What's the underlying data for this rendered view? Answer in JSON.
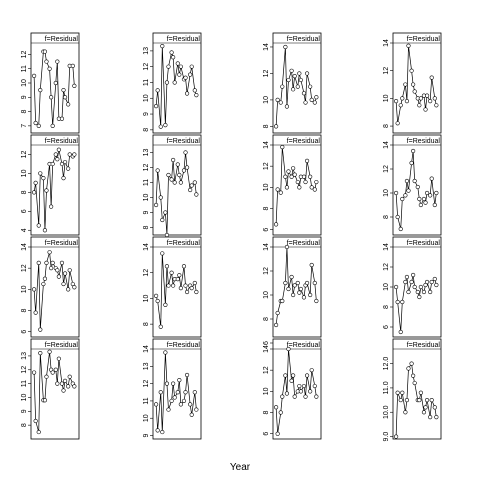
{
  "xlabel": "Year",
  "chart_data": [
    {
      "type": "line",
      "title": "f=Residual",
      "x": [
        1978,
        1979,
        1981,
        1982,
        1984,
        1985,
        1986,
        1988,
        1989,
        1990,
        1992,
        1993,
        1994,
        1996,
        1997,
        1998,
        2000,
        2001,
        2003,
        2004
      ],
      "values": [
        10.5,
        7.2,
        7.0,
        9.5,
        12.2,
        12.2,
        11.5,
        11.0,
        9.0,
        7.0,
        10.0,
        11.5,
        7.5,
        7.5,
        9.5,
        9.0,
        8.5,
        11.2,
        11.2,
        9.8
      ],
      "xlim": [
        1976,
        2007
      ],
      "ylim": [
        6.5,
        12.8
      ],
      "yticks": [
        7,
        8,
        9,
        10,
        11,
        12
      ]
    },
    {
      "type": "line",
      "title": "f=Residual",
      "x": [
        1978,
        1979,
        1981,
        1982,
        1984,
        1985,
        1986,
        1988,
        1989,
        1990,
        1992,
        1993,
        1994,
        1996,
        1997,
        1998,
        2000,
        2001,
        2003,
        2004
      ],
      "values": [
        9.5,
        10.5,
        8.2,
        13.3,
        8.3,
        11.0,
        12.0,
        12.9,
        12.6,
        11.0,
        12.2,
        11.5,
        12.0,
        11.2,
        11.3,
        10.3,
        11.5,
        12.0,
        10.5,
        10.2
      ],
      "xlim": [
        1976,
        2007
      ],
      "ylim": [
        7.8,
        13.5
      ],
      "yticks": [
        8,
        9,
        10,
        11,
        12,
        13
      ]
    },
    {
      "type": "line",
      "title": "f=Residual",
      "x": [
        1978,
        1979,
        1981,
        1982,
        1984,
        1985,
        1986,
        1988,
        1989,
        1990,
        1992,
        1993,
        1994,
        1996,
        1997,
        1998,
        2000,
        2001,
        2003,
        2004
      ],
      "values": [
        8.0,
        10.0,
        9.8,
        11.0,
        14.0,
        9.5,
        11.5,
        12.2,
        10.8,
        11.8,
        11.0,
        12.0,
        11.5,
        10.5,
        9.8,
        12.0,
        11.0,
        10.0,
        9.8,
        10.2
      ],
      "xlim": [
        1976,
        2007
      ],
      "ylim": [
        7.5,
        14.3
      ],
      "yticks": [
        8,
        10,
        12,
        14
      ]
    },
    {
      "type": "line",
      "title": "f=Residual",
      "x": [
        1978,
        1979,
        1981,
        1982,
        1984,
        1985,
        1986,
        1988,
        1989,
        1990,
        1992,
        1993,
        1994,
        1996,
        1997,
        1998,
        2000,
        2001,
        2003,
        2004
      ],
      "values": [
        9.8,
        8.2,
        9.5,
        10.0,
        11.0,
        9.8,
        13.8,
        12.0,
        11.0,
        10.5,
        10.0,
        9.5,
        10.0,
        10.2,
        9.2,
        10.2,
        9.8,
        11.5,
        10.0,
        9.5
      ],
      "xlim": [
        1976,
        2007
      ],
      "ylim": [
        7.5,
        14
      ],
      "yticks": [
        8,
        10,
        12,
        14
      ]
    },
    {
      "type": "line",
      "title": "f=Residual",
      "x": [
        1978,
        1979,
        1981,
        1982,
        1984,
        1985,
        1986,
        1988,
        1989,
        1990,
        1992,
        1993,
        1994,
        1996,
        1997,
        1998,
        2000,
        2001,
        2003,
        2004
      ],
      "values": [
        8.0,
        9.0,
        4.5,
        10.0,
        9.5,
        4.0,
        8.2,
        11.0,
        6.5,
        11.0,
        12.0,
        11.5,
        12.5,
        11.0,
        9.5,
        11.2,
        10.5,
        12.0,
        11.8,
        12.0
      ],
      "xlim": [
        1976,
        2007
      ],
      "ylim": [
        3.5,
        13
      ],
      "yticks": [
        4,
        6,
        8,
        10,
        12
      ]
    },
    {
      "type": "line",
      "title": "f=Residual",
      "x": [
        1978,
        1979,
        1981,
        1982,
        1984,
        1985,
        1986,
        1988,
        1989,
        1990,
        1992,
        1993,
        1994,
        1996,
        1997,
        1998,
        2000,
        2001,
        2003,
        2004
      ],
      "values": [
        9.5,
        11.8,
        10.0,
        8.5,
        9.0,
        7.5,
        11.5,
        11.2,
        12.5,
        11.0,
        12.2,
        11.5,
        11.0,
        11.8,
        13.0,
        12.0,
        10.5,
        10.8,
        11.0,
        10.2
      ],
      "xlim": [
        1976,
        2007
      ],
      "ylim": [
        7.5,
        13.5
      ],
      "yticks": [
        8,
        9,
        10,
        11,
        12,
        13
      ]
    },
    {
      "type": "line",
      "title": "f=Residual",
      "x": [
        1978,
        1979,
        1981,
        1982,
        1984,
        1985,
        1986,
        1988,
        1989,
        1990,
        1992,
        1993,
        1994,
        1996,
        1997,
        1998,
        2000,
        2001,
        2003,
        2004
      ],
      "values": [
        6.5,
        9.8,
        9.5,
        13.8,
        11.0,
        10.0,
        11.5,
        11.0,
        11.8,
        11.2,
        10.5,
        10.0,
        11.0,
        11.0,
        10.5,
        12.5,
        11.0,
        10.0,
        9.8,
        10.5
      ],
      "xlim": [
        1976,
        2007
      ],
      "ylim": [
        5.5,
        14
      ],
      "yticks": [
        6,
        8,
        10,
        12,
        14
      ]
    },
    {
      "type": "line",
      "title": "f=Residual",
      "x": [
        1978,
        1979,
        1981,
        1982,
        1984,
        1985,
        1986,
        1988,
        1989,
        1990,
        1992,
        1993,
        1994,
        1996,
        1997,
        1998,
        2000,
        2001,
        2003,
        2004
      ],
      "values": [
        10.0,
        8.0,
        7.0,
        9.5,
        9.8,
        11.0,
        10.2,
        12.5,
        13.5,
        11.0,
        10.5,
        9.5,
        9.0,
        9.5,
        9.2,
        10.0,
        9.8,
        11.2,
        9.0,
        10.0
      ],
      "xlim": [
        1976,
        2007
      ],
      "ylim": [
        6.5,
        14
      ],
      "yticks": [
        8,
        10,
        12,
        14
      ]
    },
    {
      "type": "line",
      "title": "f=Residual",
      "x": [
        1978,
        1979,
        1981,
        1982,
        1984,
        1985,
        1986,
        1988,
        1989,
        1990,
        1992,
        1993,
        1994,
        1996,
        1997,
        1998,
        2000,
        2001,
        2003,
        2004
      ],
      "values": [
        10.0,
        7.8,
        12.5,
        6.2,
        10.5,
        11.0,
        12.5,
        13.5,
        12.0,
        12.5,
        12.0,
        11.8,
        11.2,
        12.5,
        10.5,
        11.5,
        10.0,
        11.8,
        10.5,
        10.2
      ],
      "xlim": [
        1976,
        2007
      ],
      "ylim": [
        5.5,
        14
      ],
      "yticks": [
        6,
        8,
        10,
        12,
        14
      ]
    },
    {
      "type": "line",
      "title": "f=Residual",
      "x": [
        1978,
        1979,
        1981,
        1982,
        1984,
        1985,
        1986,
        1988,
        1989,
        1990,
        1992,
        1993,
        1994,
        1996,
        1997,
        1998,
        2000,
        2001,
        2003,
        2004
      ],
      "values": [
        10.2,
        9.8,
        7.8,
        13.5,
        9.5,
        12.5,
        11.0,
        12.0,
        11.0,
        11.5,
        11.5,
        11.8,
        10.8,
        12.5,
        11.0,
        10.5,
        11.0,
        10.8,
        11.2,
        10.5
      ],
      "xlim": [
        1976,
        2007
      ],
      "ylim": [
        7,
        14
      ],
      "yticks": [
        8,
        10,
        12,
        14
      ]
    },
    {
      "type": "line",
      "title": "f=Residual",
      "x": [
        1978,
        1979,
        1981,
        1982,
        1984,
        1985,
        1986,
        1988,
        1989,
        1990,
        1992,
        1993,
        1994,
        1996,
        1997,
        1998,
        2000,
        2001,
        2003,
        2004
      ],
      "values": [
        7.5,
        8.5,
        9.5,
        9.5,
        11.0,
        14.0,
        10.5,
        11.5,
        10.0,
        10.8,
        11.0,
        10.2,
        10.5,
        9.8,
        10.8,
        11.0,
        10.0,
        12.5,
        11.0,
        9.5
      ],
      "xlim": [
        1976,
        2007
      ],
      "ylim": [
        6.5,
        14
      ],
      "yticks": [
        6,
        8,
        10,
        12,
        14
      ]
    },
    {
      "type": "line",
      "title": "f=Residual",
      "x": [
        1978,
        1979,
        1981,
        1982,
        1984,
        1985,
        1986,
        1988,
        1989,
        1990,
        1992,
        1993,
        1994,
        1996,
        1997,
        1998,
        2000,
        2001,
        2003,
        2004
      ],
      "values": [
        10.0,
        8.5,
        5.5,
        8.5,
        10.5,
        11.0,
        9.5,
        10.5,
        11.2,
        10.0,
        9.5,
        9.0,
        10.0,
        9.5,
        10.2,
        10.5,
        9.5,
        10.5,
        10.8,
        10.2
      ],
      "xlim": [
        1976,
        2007
      ],
      "ylim": [
        5,
        14
      ],
      "yticks": [
        6,
        8,
        10,
        12,
        14
      ]
    },
    {
      "type": "line",
      "title": "f=Residual",
      "x": [
        1978,
        1979,
        1981,
        1982,
        1984,
        1985,
        1986,
        1988,
        1989,
        1990,
        1992,
        1993,
        1994,
        1996,
        1997,
        1998,
        2000,
        2001,
        2003,
        2004
      ],
      "values": [
        11.8,
        8.3,
        7.5,
        13.2,
        9.8,
        9.8,
        11.5,
        13.3,
        12.0,
        11.8,
        12.0,
        11.0,
        12.8,
        11.0,
        10.5,
        11.2,
        10.8,
        11.5,
        11.0,
        10.8
      ],
      "xlim": [
        1976,
        2007
      ],
      "ylim": [
        7,
        13.5
      ],
      "yticks": [
        8,
        9,
        10,
        11,
        12,
        13
      ]
    },
    {
      "type": "line",
      "title": "f=Residual",
      "x": [
        1978,
        1979,
        1981,
        1982,
        1984,
        1985,
        1986,
        1988,
        1989,
        1990,
        1992,
        1993,
        1994,
        1996,
        1997,
        1998,
        2000,
        2001,
        2003,
        2004
      ],
      "values": [
        10.8,
        9.3,
        11.5,
        9.2,
        13.8,
        12.0,
        10.5,
        11.0,
        12.0,
        11.2,
        11.5,
        12.2,
        10.8,
        11.0,
        11.5,
        12.5,
        10.8,
        10.2,
        11.5,
        10.5
      ],
      "xlim": [
        1976,
        2007
      ],
      "ylim": [
        8.8,
        14
      ],
      "yticks": [
        9,
        10,
        11,
        12,
        13,
        14
      ]
    },
    {
      "type": "line",
      "title": "f=Residual",
      "x": [
        1978,
        1979,
        1981,
        1982,
        1984,
        1985,
        1986,
        1988,
        1989,
        1990,
        1992,
        1993,
        1994,
        1996,
        1997,
        1998,
        2000,
        2001,
        2003,
        2004
      ],
      "values": [
        8.5,
        6.0,
        8.0,
        9.5,
        11.5,
        9.8,
        14.0,
        11.0,
        11.5,
        9.5,
        10.0,
        10.5,
        10.0,
        10.5,
        9.5,
        11.5,
        10.0,
        12.0,
        10.5,
        9.5
      ],
      "xlim": [
        1976,
        2007
      ],
      "ylim": [
        5.5,
        14
      ],
      "yticks": [
        6,
        8,
        10,
        12,
        14
      ]
    },
    {
      "type": "line",
      "title": "f=Residual",
      "x": [
        1978,
        1979,
        1981,
        1982,
        1984,
        1985,
        1986,
        1988,
        1989,
        1990,
        1992,
        1993,
        1994,
        1996,
        1997,
        1998,
        2000,
        2001,
        2003,
        2004
      ],
      "values": [
        9.0,
        10.8,
        10.5,
        10.8,
        10.0,
        10.5,
        11.8,
        12.0,
        11.5,
        11.2,
        10.5,
        10.5,
        10.8,
        10.0,
        10.2,
        10.5,
        9.8,
        10.5,
        10.2,
        9.8
      ],
      "xlim": [
        1976,
        2007
      ],
      "ylim": [
        8.9,
        12.6
      ],
      "yticks": [
        {
          "value": 9,
          "label": "9.0"
        },
        {
          "value": 10,
          "label": "10.0"
        },
        {
          "value": 11,
          "label": "11.0"
        },
        {
          "value": 12,
          "label": "12.0"
        }
      ]
    }
  ]
}
